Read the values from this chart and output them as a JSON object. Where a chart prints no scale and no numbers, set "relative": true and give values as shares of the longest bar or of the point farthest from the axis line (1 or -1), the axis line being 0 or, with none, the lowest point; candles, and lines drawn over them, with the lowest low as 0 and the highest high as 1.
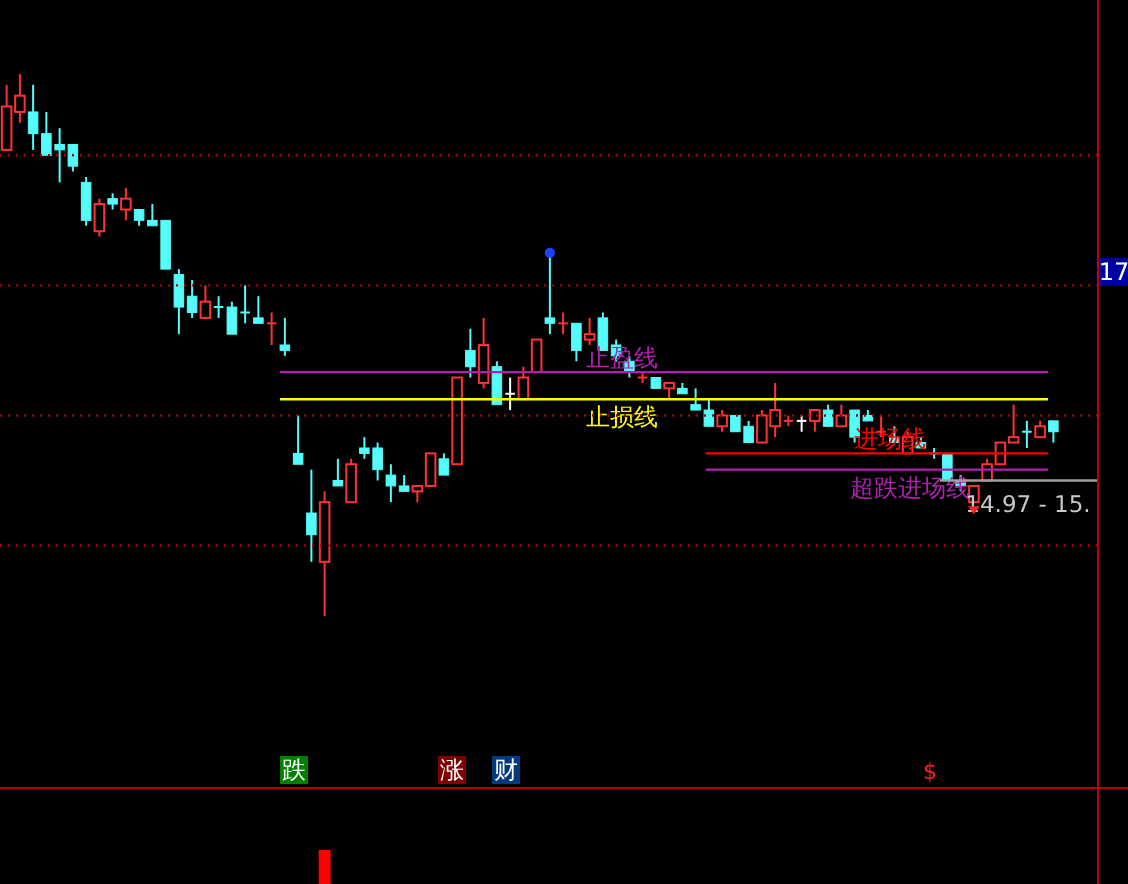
{
  "chart_data": [
    {
      "type": "candlestick",
      "relative": true,
      "categories": [
        null,
        null,
        null,
        null,
        null,
        null,
        null,
        null,
        null,
        null,
        null,
        null,
        null,
        null,
        null,
        null,
        null,
        null,
        null,
        null,
        null,
        null,
        null,
        null,
        null,
        null,
        null,
        null,
        null,
        null,
        null,
        null,
        null,
        null,
        null,
        null,
        null,
        null,
        null,
        null,
        null,
        null,
        null,
        null,
        null,
        null,
        null,
        null,
        null,
        null,
        null,
        null,
        null,
        null,
        null,
        null,
        null,
        null,
        null,
        null,
        null,
        null,
        null,
        null,
        null,
        null,
        null,
        null,
        null,
        null,
        null,
        null,
        null,
        null,
        null,
        null,
        null,
        null,
        null,
        null
      ],
      "ohlc": [
        [
          0.86,
          0.98,
          0.86,
          0.94
        ],
        [
          0.93,
          1.0,
          0.91,
          0.96
        ],
        [
          0.93,
          0.98,
          0.86,
          0.89
        ],
        [
          0.89,
          0.93,
          0.85,
          0.85
        ],
        [
          0.87,
          0.9,
          0.8,
          0.86
        ],
        [
          0.87,
          0.87,
          0.82,
          0.83
        ],
        [
          0.8,
          0.81,
          0.72,
          0.73
        ],
        [
          0.71,
          0.77,
          0.7,
          0.76
        ],
        [
          0.77,
          0.78,
          0.75,
          0.76
        ],
        [
          0.75,
          0.79,
          0.73,
          0.77
        ],
        [
          0.75,
          0.75,
          0.72,
          0.73
        ],
        [
          0.73,
          0.76,
          0.72,
          0.72
        ],
        [
          0.73,
          0.73,
          0.64,
          0.64
        ],
        [
          0.63,
          0.64,
          0.52,
          0.57
        ],
        [
          0.59,
          0.62,
          0.55,
          0.56
        ],
        [
          0.55,
          0.61,
          0.55,
          0.58
        ],
        [
          0.57,
          0.59,
          0.55,
          0.57
        ],
        [
          0.57,
          0.58,
          0.52,
          0.52
        ],
        [
          0.56,
          0.61,
          0.54,
          0.56
        ],
        [
          0.55,
          0.59,
          0.54,
          0.54
        ],
        [
          0.54,
          0.56,
          0.5,
          0.54
        ],
        [
          0.5,
          0.55,
          0.48,
          0.49
        ],
        [
          0.3,
          0.37,
          0.28,
          0.28
        ],
        [
          0.19,
          0.27,
          0.1,
          0.15
        ],
        [
          0.1,
          0.23,
          0,
          0.21
        ],
        [
          0.25,
          0.29,
          0.24,
          0.24
        ],
        [
          0.21,
          0.29,
          0.21,
          0.28
        ],
        [
          0.31,
          0.33,
          0.29,
          0.3
        ],
        [
          0.31,
          0.32,
          0.25,
          0.27
        ],
        [
          0.26,
          0.28,
          0.21,
          0.24
        ],
        [
          0.24,
          0.26,
          0.23,
          0.23
        ],
        [
          0.23,
          0.24,
          0.21,
          0.24
        ],
        [
          0.24,
          0.3,
          0.24,
          0.3
        ],
        [
          0.29,
          0.3,
          0.26,
          0.26
        ],
        [
          0.28,
          0.44,
          0.28,
          0.44
        ],
        [
          0.49,
          0.53,
          0.44,
          0.46
        ],
        [
          0.43,
          0.55,
          0.42,
          0.5
        ],
        [
          0.46,
          0.47,
          0.39,
          0.39
        ],
        [
          0.41,
          0.44,
          0.38,
          0.41
        ],
        [
          0.4,
          0.46,
          0.4,
          0.44
        ],
        [
          0.45,
          0.51,
          0.45,
          0.51
        ],
        [
          0.55,
          0.67,
          0.52,
          0.54
        ],
        [
          0.54,
          0.56,
          0.52,
          0.54
        ],
        [
          0.54,
          0.54,
          0.47,
          0.49
        ],
        [
          0.51,
          0.55,
          0.5,
          0.52
        ],
        [
          0.55,
          0.56,
          0.49,
          0.49
        ],
        [
          0.5,
          0.51,
          0.47,
          0.48
        ],
        [
          0.47,
          0.48,
          0.44,
          0.45
        ],
        [
          0.44,
          0.45,
          0.43,
          0.44
        ],
        [
          0.44,
          0.44,
          0.42,
          0.42
        ],
        [
          0.42,
          0.43,
          0.4,
          0.43
        ],
        [
          0.42,
          0.43,
          0.41,
          0.41
        ],
        [
          0.39,
          0.42,
          0.38,
          0.38
        ],
        [
          0.38,
          0.4,
          0.35,
          0.35
        ],
        [
          0.35,
          0.38,
          0.34,
          0.37
        ],
        [
          0.37,
          0.37,
          0.34,
          0.34
        ],
        [
          0.35,
          0.36,
          0.32,
          0.32
        ],
        [
          0.32,
          0.38,
          0.32,
          0.37
        ],
        [
          0.35,
          0.43,
          0.33,
          0.38
        ],
        [
          0.36,
          0.37,
          0.35,
          0.36
        ],
        [
          0.36,
          0.37,
          0.34,
          0.36
        ],
        [
          0.36,
          0.38,
          0.34,
          0.38
        ],
        [
          0.38,
          0.39,
          0.35,
          0.35
        ],
        [
          0.35,
          0.39,
          0.35,
          0.37
        ],
        [
          0.38,
          0.38,
          0.32,
          0.33
        ],
        [
          0.37,
          0.38,
          0.36,
          0.36
        ],
        [
          0.34,
          0.37,
          0.33,
          0.34
        ],
        [
          0.33,
          0.35,
          0.32,
          0.32
        ],
        [
          0.3,
          0.34,
          0.3,
          0.33
        ],
        [
          0.32,
          0.33,
          0.31,
          0.31
        ],
        [
          0.3,
          0.31,
          0.29,
          0.3
        ],
        [
          0.3,
          0.3,
          0.25,
          0.25
        ],
        [
          0.25,
          0.26,
          0.23,
          0.24
        ],
        [
          0.21,
          0.24,
          0.21,
          0.24
        ],
        [
          0.25,
          0.29,
          0.25,
          0.28
        ],
        [
          0.28,
          0.32,
          0.28,
          0.32
        ],
        [
          0.32,
          0.39,
          0.32,
          0.33
        ],
        [
          0.34,
          0.36,
          0.31,
          0.34
        ],
        [
          0.33,
          0.36,
          0.33,
          0.35
        ],
        [
          0.36,
          0.36,
          0.32,
          0.34
        ]
      ],
      "colors": [
        "#ff3232",
        "#ff3232",
        "#54fcfc",
        "#54fcfc",
        "#54fcfc",
        "#54fcfc",
        "#54fcfc",
        "#ff3232",
        "#54fcfc",
        "#ff3232",
        "#54fcfc",
        "#54fcfc",
        "#54fcfc",
        "#54fcfc",
        "#54fcfc",
        "#ff3232",
        "#54fcfc",
        "#54fcfc",
        "#54fcfc",
        "#54fcfc",
        "#ff3232",
        "#54fcfc",
        "#54fcfc",
        "#54fcfc",
        "#ff3232",
        "#54fcfc",
        "#ff3232",
        "#54fcfc",
        "#54fcfc",
        "#54fcfc",
        "#54fcfc",
        "#ff3232",
        "#ff3232",
        "#54fcfc",
        "#ff3232",
        "#54fcfc",
        "#ff3232",
        "#54fcfc",
        "#ffffff",
        "#ff3232",
        "#ff3232",
        "#54fcfc",
        "#ff3232",
        "#54fcfc",
        "#ff3232",
        "#54fcfc",
        "#54fcfc",
        "#54fcfc",
        "#ff3232",
        "#54fcfc",
        "#ff3232",
        "#54fcfc",
        "#54fcfc",
        "#54fcfc",
        "#ff3232",
        "#54fcfc",
        "#54fcfc",
        "#ff3232",
        "#ff3232",
        "#ff3232",
        "#ffffff",
        "#ff3232",
        "#54fcfc",
        "#ff3232",
        "#54fcfc",
        "#54fcfc",
        "#ff3232",
        "#54fcfc",
        "#ff3232",
        "#54fcfc",
        "#54fcfc",
        "#54fcfc",
        "#54fcfc",
        "#ff3232",
        "#ff3232",
        "#ff3232",
        "#ff3232",
        "#54fcfc",
        "#ff3232",
        "#54fcfc"
      ],
      "ref_lines": [
        {
          "axis": "y",
          "value": 0.45,
          "label": "止盈线",
          "color": "#b020b0"
        },
        {
          "axis": "y",
          "value": 0.4,
          "label": "止损线",
          "color": "#ffff00"
        },
        {
          "axis": "y",
          "value": 0.3,
          "label": "进场线",
          "color": "#ff0000"
        },
        {
          "axis": "y",
          "value": 0.27,
          "label": "超跌进场线",
          "color": "#b020b0"
        },
        {
          "axis": "y",
          "value": 0.25,
          "color": "#a0a0a0"
        },
        {
          "axis": "y",
          "value": 0.85,
          "color": "#b00000",
          "line_style": "dotted"
        },
        {
          "axis": "y",
          "value": 0.61,
          "color": "#b00000",
          "line_style": "dotted"
        },
        {
          "axis": "y",
          "value": 0.37,
          "color": "#b00000",
          "line_style": "dotted"
        },
        {
          "axis": "y",
          "value": 0.13,
          "color": "#b00000",
          "line_style": "dotted"
        }
      ],
      "annotations": [
        "跌",
        "涨",
        "财",
        "17",
        "14.97 - 15.",
        "$"
      ]
    },
    {
      "type": "bar",
      "relative": true,
      "categories": [
        null,
        null,
        null,
        null,
        null,
        null,
        null,
        null,
        null,
        null,
        null,
        null,
        null,
        null,
        null,
        null,
        null,
        null,
        null,
        null,
        null,
        null,
        null,
        null,
        null,
        null,
        null,
        null,
        null,
        null,
        null,
        null,
        null,
        null,
        null,
        null,
        null,
        null,
        null,
        null,
        null,
        null,
        null,
        null,
        null,
        null,
        null,
        null,
        null,
        null,
        null,
        null,
        null,
        null,
        null,
        null,
        null,
        null,
        null,
        null,
        null,
        null,
        null,
        null,
        null,
        null,
        null,
        null,
        null,
        null,
        null,
        null,
        null,
        null,
        null,
        null,
        null,
        null,
        null,
        null
      ],
      "values": [
        null,
        null,
        null,
        null,
        null,
        null,
        null,
        null,
        null,
        null,
        null,
        null,
        null,
        null,
        null,
        null,
        null,
        null,
        null,
        null,
        null,
        null,
        null,
        null,
        1,
        null,
        null,
        null,
        null,
        null,
        null,
        null,
        null,
        null,
        null,
        null,
        null,
        null,
        null,
        null,
        null,
        null,
        null,
        null,
        null,
        null,
        null,
        null,
        null,
        null,
        null,
        null,
        null,
        null,
        null,
        null,
        null,
        null,
        null,
        null,
        null,
        null,
        null,
        null,
        null,
        null,
        null,
        null,
        null,
        null,
        null,
        null,
        null,
        null,
        null,
        null,
        null,
        null,
        null,
        null
      ],
      "color": "#ff0000"
    }
  ]
}
